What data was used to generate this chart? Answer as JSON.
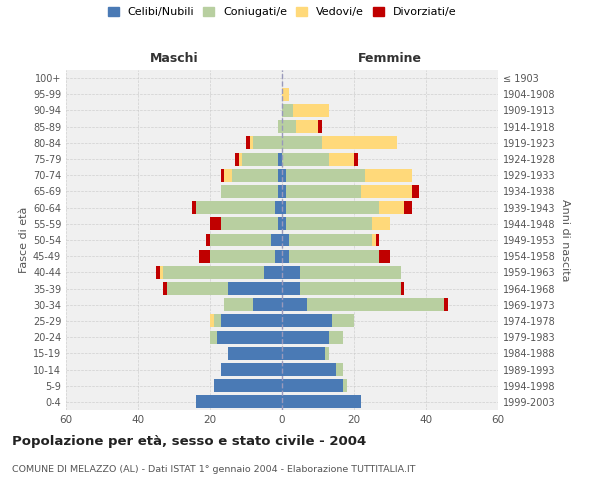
{
  "age_groups": [
    "0-4",
    "5-9",
    "10-14",
    "15-19",
    "20-24",
    "25-29",
    "30-34",
    "35-39",
    "40-44",
    "45-49",
    "50-54",
    "55-59",
    "60-64",
    "65-69",
    "70-74",
    "75-79",
    "80-84",
    "85-89",
    "90-94",
    "95-99",
    "100+"
  ],
  "birth_years": [
    "1999-2003",
    "1994-1998",
    "1989-1993",
    "1984-1988",
    "1979-1983",
    "1974-1978",
    "1969-1973",
    "1964-1968",
    "1959-1963",
    "1954-1958",
    "1949-1953",
    "1944-1948",
    "1939-1943",
    "1934-1938",
    "1929-1933",
    "1924-1928",
    "1919-1923",
    "1914-1918",
    "1909-1913",
    "1904-1908",
    "≤ 1903"
  ],
  "colors": {
    "celibi": "#4a7ab5",
    "coniugati": "#b8cfa0",
    "vedovi": "#ffd97a",
    "divorziati": "#c00000"
  },
  "maschi": {
    "celibi": [
      24,
      19,
      17,
      15,
      18,
      17,
      8,
      15,
      5,
      2,
      3,
      1,
      2,
      1,
      1,
      1,
      0,
      0,
      0,
      0,
      0
    ],
    "coniugati": [
      0,
      0,
      0,
      0,
      2,
      2,
      8,
      17,
      28,
      18,
      17,
      16,
      22,
      16,
      13,
      10,
      8,
      1,
      0,
      0,
      0
    ],
    "vedovi": [
      0,
      0,
      0,
      0,
      0,
      1,
      0,
      0,
      1,
      0,
      0,
      0,
      0,
      0,
      2,
      1,
      1,
      0,
      0,
      0,
      0
    ],
    "divorziati": [
      0,
      0,
      0,
      0,
      0,
      0,
      0,
      1,
      1,
      3,
      1,
      3,
      1,
      0,
      1,
      1,
      1,
      0,
      0,
      0,
      0
    ]
  },
  "femmine": {
    "celibi": [
      22,
      17,
      15,
      12,
      13,
      14,
      7,
      5,
      5,
      2,
      2,
      1,
      1,
      1,
      1,
      0,
      0,
      0,
      0,
      0,
      0
    ],
    "coniugati": [
      0,
      1,
      2,
      1,
      4,
      6,
      38,
      28,
      28,
      25,
      23,
      24,
      26,
      21,
      22,
      13,
      11,
      4,
      3,
      0,
      0
    ],
    "vedovi": [
      0,
      0,
      0,
      0,
      0,
      0,
      0,
      0,
      0,
      0,
      1,
      5,
      7,
      14,
      13,
      7,
      21,
      6,
      10,
      2,
      0
    ],
    "divorziati": [
      0,
      0,
      0,
      0,
      0,
      0,
      1,
      1,
      0,
      3,
      1,
      0,
      2,
      2,
      0,
      1,
      0,
      1,
      0,
      0,
      0
    ]
  },
  "xlim": 60,
  "title": "Popolazione per età, sesso e stato civile - 2004",
  "subtitle": "COMUNE DI MELAZZO (AL) - Dati ISTAT 1° gennaio 2004 - Elaborazione TUTTITALIA.IT",
  "xlabel_left": "Maschi",
  "xlabel_right": "Femmine",
  "ylabel_left": "Fasce di età",
  "ylabel_right": "Anni di nascita",
  "legend_labels": [
    "Celibi/Nubili",
    "Coniugati/e",
    "Vedovi/e",
    "Divorziati/e"
  ],
  "bg_color": "#f0f0f0",
  "grid_color": "#cccccc"
}
